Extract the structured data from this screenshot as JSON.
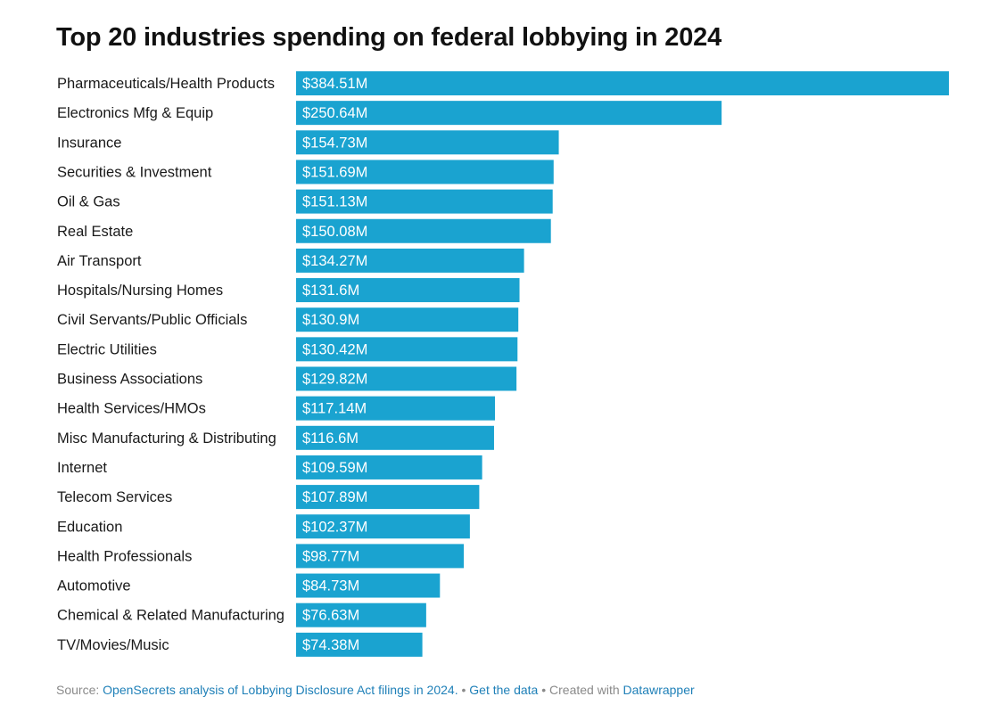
{
  "chart_data": {
    "type": "bar",
    "orientation": "horizontal",
    "title": "Top 20 industries spending on federal lobbying in 2024",
    "xlabel": "",
    "ylabel": "",
    "unit": "millions USD",
    "xlim": [
      0,
      384.51
    ],
    "bar_color": "#1aa3d0",
    "label_color": "#ffffff",
    "categories": [
      "Pharmaceuticals/Health Products",
      "Electronics Mfg & Equip",
      "Insurance",
      "Securities & Investment",
      "Oil & Gas",
      "Real Estate",
      "Air Transport",
      "Hospitals/Nursing Homes",
      "Civil Servants/Public Officials",
      "Electric Utilities",
      "Business Associations",
      "Health Services/HMOs",
      "Misc Manufacturing & Distributing",
      "Internet",
      "Telecom Services",
      "Education",
      "Health Professionals",
      "Automotive",
      "Chemical & Related Manufacturing",
      "TV/Movies/Music"
    ],
    "values": [
      384.51,
      250.64,
      154.73,
      151.69,
      151.13,
      150.08,
      134.27,
      131.6,
      130.9,
      130.42,
      129.82,
      117.14,
      116.6,
      109.59,
      107.89,
      102.37,
      98.77,
      84.73,
      76.63,
      74.38
    ],
    "value_labels": [
      "$384.51M",
      "$250.64M",
      "$154.73M",
      "$151.69M",
      "$151.13M",
      "$150.08M",
      "$134.27M",
      "$131.6M",
      "$130.9M",
      "$130.42M",
      "$129.82M",
      "$117.14M",
      "$116.6M",
      "$109.59M",
      "$107.89M",
      "$102.37M",
      "$98.77M",
      "$84.73M",
      "$76.63M",
      "$74.38M"
    ]
  },
  "footer": {
    "source_prefix": "Source: ",
    "source_link": "OpenSecrets analysis of Lobbying Disclosure Act filings in 2024.",
    "separator_1": " • ",
    "data_link": "Get the data",
    "separator_2": " • Created with ",
    "tool_link": "Datawrapper"
  }
}
